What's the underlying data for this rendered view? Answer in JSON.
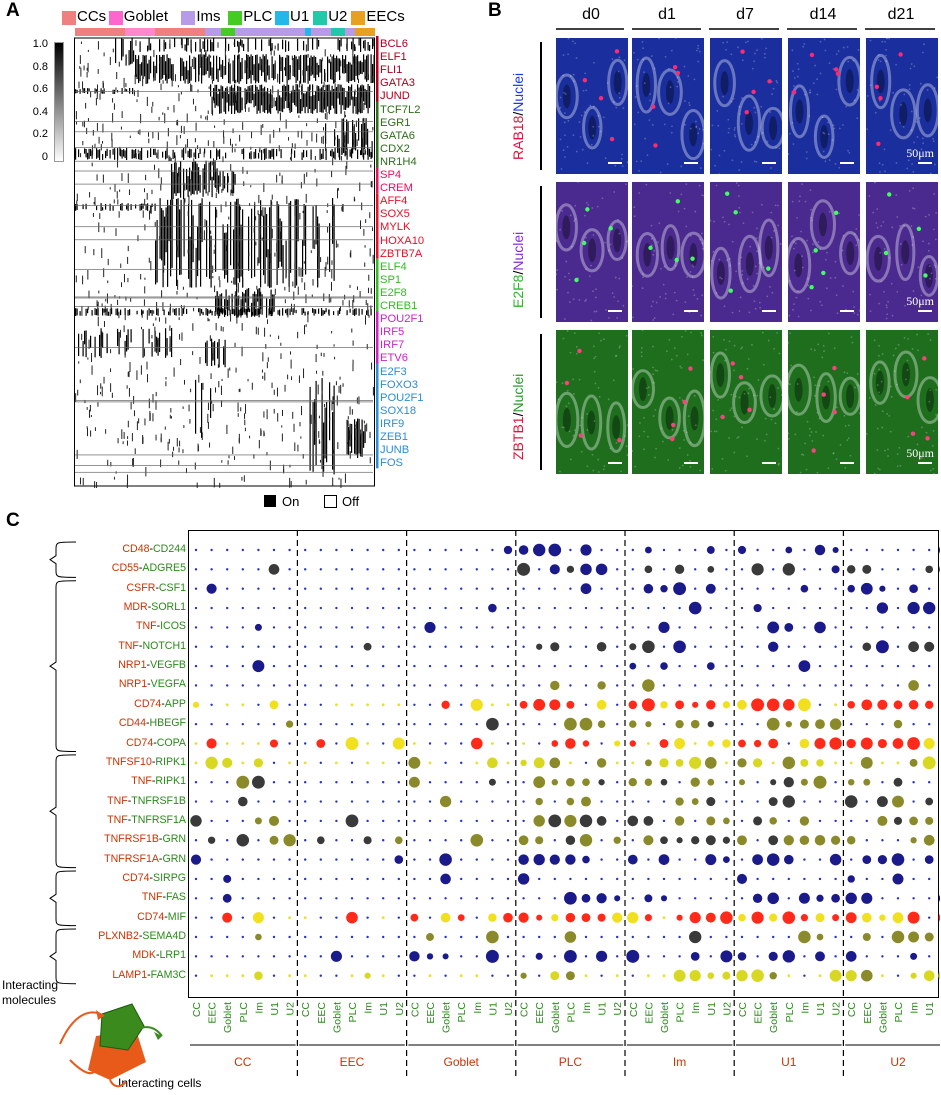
{
  "panelA": {
    "label": "A",
    "cell_types": [
      {
        "name": "CCs",
        "color": "#f08080"
      },
      {
        "name": "Goblet",
        "color": "#ff66cc"
      },
      {
        "name": "Ims",
        "color": "#b79ae8"
      },
      {
        "name": "PLC",
        "color": "#44cc22"
      },
      {
        "name": "U1",
        "color": "#22b8e8"
      },
      {
        "name": "U2",
        "color": "#22c9a8"
      },
      {
        "name": "EECs",
        "color": "#e8a020"
      }
    ],
    "colorbar_ticks": [
      "1.0",
      "0.8",
      "0.6",
      "0.4",
      "0.2",
      "0"
    ],
    "genes": [
      {
        "name": "BCL6",
        "color": "#b0001c"
      },
      {
        "name": "ELF1",
        "color": "#b0001c"
      },
      {
        "name": "FLI1",
        "color": "#b0001c"
      },
      {
        "name": "GATA3",
        "color": "#b0001c"
      },
      {
        "name": "JUND",
        "color": "#b0001c"
      },
      {
        "name": "TCF7L2",
        "color": "#2e6e1a"
      },
      {
        "name": "EGR1",
        "color": "#2e6e1a"
      },
      {
        "name": "GATA6",
        "color": "#2e6e1a"
      },
      {
        "name": "CDX2",
        "color": "#2e6e1a"
      },
      {
        "name": "NR1H4",
        "color": "#2e6e1a"
      },
      {
        "name": "SP4",
        "color": "#e8105a"
      },
      {
        "name": "CREM",
        "color": "#e8105a"
      },
      {
        "name": "AFF4",
        "color": "#e81028"
      },
      {
        "name": "SOX5",
        "color": "#e81028"
      },
      {
        "name": "MYLK",
        "color": "#e81028"
      },
      {
        "name": "HOXA10",
        "color": "#e81028"
      },
      {
        "name": "ZBTB7A",
        "color": "#e81028"
      },
      {
        "name": "ELF4",
        "color": "#33bb22"
      },
      {
        "name": "SP1",
        "color": "#33bb22"
      },
      {
        "name": "E2F8",
        "color": "#33bb22"
      },
      {
        "name": "CREB1",
        "color": "#33bb22"
      },
      {
        "name": "POU2F1",
        "color": "#cc22cc"
      },
      {
        "name": "IRF5",
        "color": "#cc22cc"
      },
      {
        "name": "IRF7",
        "color": "#cc22cc"
      },
      {
        "name": "ETV6",
        "color": "#cc22cc"
      },
      {
        "name": "E2F3",
        "color": "#2a8ed8"
      },
      {
        "name": "FOXO3",
        "color": "#2a8ed8"
      },
      {
        "name": "POU2F1",
        "color": "#2a8ed8"
      },
      {
        "name": "SOX18",
        "color": "#2a8ed8"
      },
      {
        "name": "IRF9",
        "color": "#2a8ed8"
      },
      {
        "name": "ZEB1",
        "color": "#2a8ed8"
      },
      {
        "name": "JUNB",
        "color": "#2a8ed8"
      },
      {
        "name": "FOS",
        "color": "#2a8ed8"
      }
    ],
    "legend_on": "On",
    "legend_off": "Off"
  },
  "panelB": {
    "label": "B",
    "days": [
      "d0",
      "d1",
      "d7",
      "d14",
      "d21"
    ],
    "rows": [
      {
        "marker": "RAB18",
        "marker_color": "#e8103c",
        "sep": "/",
        "counter": "Nuclei",
        "counter_color": "#1a3ae8",
        "bg": "#1a2e9e",
        "dot": "#ff2a70"
      },
      {
        "marker": "E2F8",
        "marker_color": "#2ab82a",
        "sep": "/",
        "counter": "Nuclei",
        "counter_color": "#8a2ad8",
        "bg": "#4a2a8e",
        "dot": "#40ff60"
      },
      {
        "marker": "ZBTB1",
        "marker_color": "#e8103c",
        "sep": "/",
        "counter": "Nuclei",
        "counter_color": "#2a9a2a",
        "bg": "#1e6e1e",
        "dot": "#ff4080"
      }
    ],
    "scale_label": "50μm"
  },
  "panelC": {
    "label": "C",
    "pairs": [
      {
        "ligand": "CD48",
        "receptor": "CD244"
      },
      {
        "ligand": "CD55",
        "receptor": "ADGRE5"
      },
      {
        "ligand": "CSFR",
        "receptor": "CSF1"
      },
      {
        "ligand": "MDR",
        "receptor": "SORL1"
      },
      {
        "ligand": "TNF",
        "receptor": "ICOS"
      },
      {
        "ligand": "TNF",
        "receptor": "NOTCH1"
      },
      {
        "ligand": "NRP1",
        "receptor": "VEGFB"
      },
      {
        "ligand": "NRP1",
        "receptor": "VEGFA"
      },
      {
        "ligand": "CD74",
        "receptor": "APP"
      },
      {
        "ligand": "CD44",
        "receptor": "HBEGF"
      },
      {
        "ligand": "CD74",
        "receptor": "COPA"
      },
      {
        "ligand": "TNFSF10",
        "receptor": "RIPK1"
      },
      {
        "ligand": "TNF",
        "receptor": "RIPK1"
      },
      {
        "ligand": "TNF",
        "receptor": "TNFRSF1B"
      },
      {
        "ligand": "TNF",
        "receptor": "TNFRSF1A"
      },
      {
        "ligand": "TNFRSF1B",
        "receptor": "GRN"
      },
      {
        "ligand": "TNFRSF1A",
        "receptor": "GRN"
      },
      {
        "ligand": "CD74",
        "receptor": "SIRPG"
      },
      {
        "ligand": "TNF",
        "receptor": "FAS"
      },
      {
        "ligand": "CD74",
        "receptor": "MIF"
      },
      {
        "ligand": "PLXNB2",
        "receptor": "SEMA4D"
      },
      {
        "ligand": "MDK",
        "receptor": "LRP1"
      },
      {
        "ligand": "LAMP1",
        "receptor": "FAM3C"
      }
    ],
    "ligand_color": "#cc3300",
    "receptor_color": "#2a8a1a",
    "groups": [
      "CC",
      "EEC",
      "Goblet",
      "PLC",
      "Im",
      "U1",
      "U2"
    ],
    "sub_labels": [
      "CC",
      "EEC",
      "Goblet",
      "PLC",
      "Im",
      "U1",
      "U2"
    ],
    "legend_molecules": "Interacting molecules",
    "legend_cells": "Interacting cells"
  }
}
